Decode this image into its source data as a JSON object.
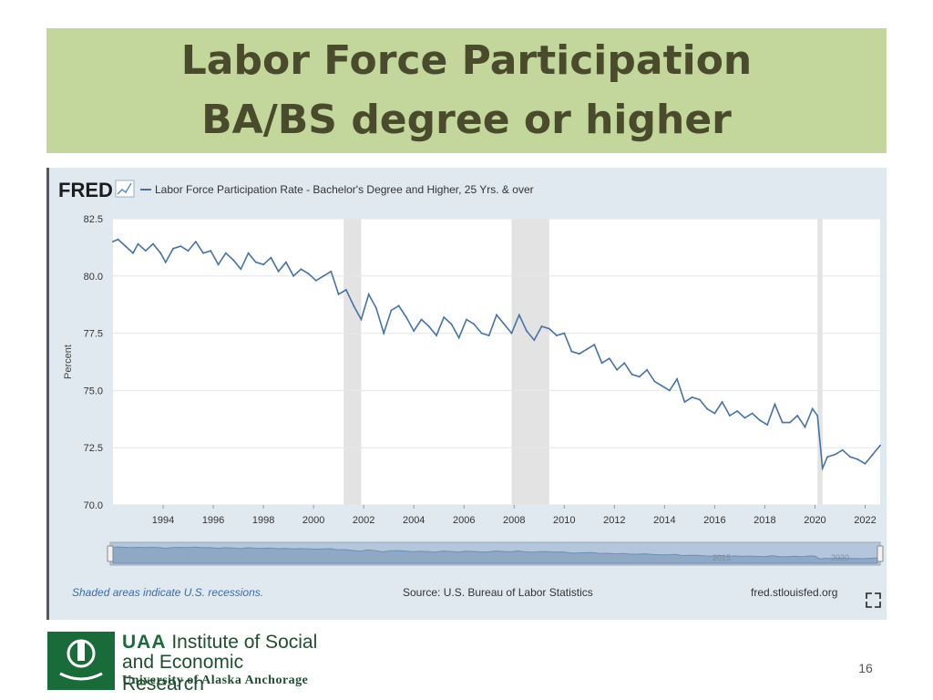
{
  "slide": {
    "title_line1": "Labor Force Participation",
    "title_line2": "BA/BS degree or higher",
    "page_number": "16"
  },
  "logo": {
    "uaa": "UAA",
    "line1_rest": " Institute of Social",
    "line2": "and Economic Research",
    "line3": "University of Alaska Anchorage"
  },
  "fred": {
    "brand": "FRED",
    "legend": "Labor Force Participation Rate - Bachelor's Degree and Higher, 25 Yrs. & over",
    "recession_note": "Shaded areas indicate U.S. recessions.",
    "source": "Source: U.S. Bureau of Labor Statistics",
    "site": "fred.stlouisfed.org",
    "navigator_labels": [
      "2015",
      "2020"
    ]
  },
  "chart_data": {
    "type": "line",
    "title": "Labor Force Participation Rate - Bachelor's Degree and Higher, 25 Yrs. & over",
    "xlabel": "",
    "ylabel": "Percent",
    "xlim": [
      1992.0,
      2022.6
    ],
    "ylim": [
      70.0,
      82.5
    ],
    "y_ticks": [
      "70.0",
      "72.5",
      "75.0",
      "77.5",
      "80.0",
      "82.5"
    ],
    "x_ticks": [
      "1994",
      "1996",
      "1998",
      "2000",
      "2002",
      "2004",
      "2006",
      "2008",
      "2010",
      "2012",
      "2014",
      "2016",
      "2018",
      "2020",
      "2022"
    ],
    "x_tick_values": [
      1994,
      1996,
      1998,
      2000,
      2002,
      2004,
      2006,
      2008,
      2010,
      2012,
      2014,
      2016,
      2018,
      2020,
      2022
    ],
    "grid": true,
    "recessions": [
      [
        2001.2,
        2001.9
      ],
      [
        2007.9,
        2009.4
      ],
      [
        2020.1,
        2020.3
      ]
    ],
    "series": [
      {
        "name": "Labor Force Participation Rate - Bachelor's Degree and Higher, 25 Yrs. & over",
        "color": "#4572a7",
        "x": [
          1992.0,
          1992.2,
          1992.5,
          1992.8,
          1993.0,
          1993.3,
          1993.6,
          1993.9,
          1994.1,
          1994.4,
          1994.7,
          1995.0,
          1995.3,
          1995.6,
          1995.9,
          1996.2,
          1996.5,
          1996.8,
          1997.1,
          1997.4,
          1997.7,
          1998.0,
          1998.3,
          1998.6,
          1998.9,
          1999.2,
          1999.5,
          1999.8,
          2000.1,
          2000.4,
          2000.7,
          2001.0,
          2001.3,
          2001.6,
          2001.9,
          2002.2,
          2002.5,
          2002.8,
          2003.1,
          2003.4,
          2003.7,
          2004.0,
          2004.3,
          2004.6,
          2004.9,
          2005.2,
          2005.5,
          2005.8,
          2006.1,
          2006.4,
          2006.7,
          2007.0,
          2007.3,
          2007.6,
          2007.9,
          2008.2,
          2008.5,
          2008.8,
          2009.1,
          2009.4,
          2009.7,
          2010.0,
          2010.3,
          2010.6,
          2010.9,
          2011.2,
          2011.5,
          2011.8,
          2012.1,
          2012.4,
          2012.7,
          2013.0,
          2013.3,
          2013.6,
          2013.9,
          2014.2,
          2014.5,
          2014.8,
          2015.1,
          2015.4,
          2015.7,
          2016.0,
          2016.3,
          2016.6,
          2016.9,
          2017.2,
          2017.5,
          2017.8,
          2018.1,
          2018.4,
          2018.7,
          2019.0,
          2019.3,
          2019.6,
          2019.9,
          2020.1,
          2020.3,
          2020.5,
          2020.8,
          2021.1,
          2021.4,
          2021.7,
          2022.0,
          2022.3,
          2022.6
        ],
        "values": [
          81.5,
          81.6,
          81.3,
          81.0,
          81.4,
          81.1,
          81.4,
          81.0,
          80.6,
          81.2,
          81.3,
          81.1,
          81.5,
          81.0,
          81.1,
          80.5,
          81.0,
          80.7,
          80.3,
          81.0,
          80.6,
          80.5,
          80.8,
          80.2,
          80.6,
          80.0,
          80.3,
          80.1,
          79.8,
          80.0,
          80.2,
          79.2,
          79.4,
          78.7,
          78.1,
          79.2,
          78.6,
          77.5,
          78.5,
          78.7,
          78.2,
          77.6,
          78.1,
          77.8,
          77.4,
          78.2,
          77.9,
          77.3,
          78.1,
          77.9,
          77.5,
          77.4,
          78.3,
          77.9,
          77.5,
          78.3,
          77.6,
          77.2,
          77.8,
          77.7,
          77.4,
          77.5,
          76.7,
          76.6,
          76.8,
          77.0,
          76.2,
          76.4,
          75.9,
          76.2,
          75.7,
          75.6,
          75.9,
          75.4,
          75.2,
          75.0,
          75.5,
          74.5,
          74.7,
          74.6,
          74.2,
          74.0,
          74.5,
          73.9,
          74.1,
          73.8,
          74.0,
          73.7,
          73.5,
          74.4,
          73.6,
          73.6,
          73.9,
          73.4,
          74.2,
          73.9,
          71.6,
          72.1,
          72.2,
          72.4,
          72.1,
          72.0,
          71.8,
          72.2,
          72.6
        ]
      }
    ]
  }
}
